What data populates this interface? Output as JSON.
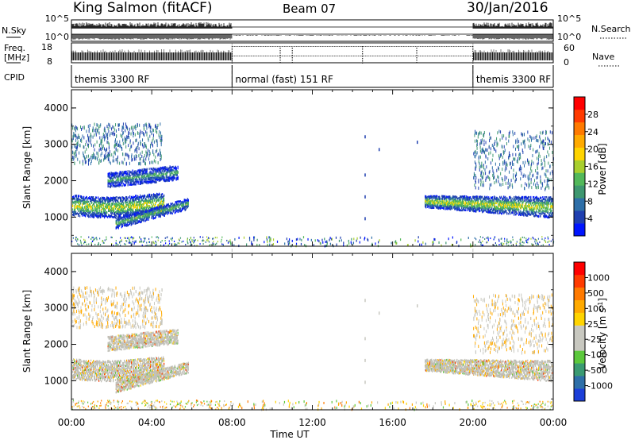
{
  "header": {
    "station": "King Salmon (fitACF)",
    "beam": "Beam 07",
    "date": "30/Jan/2016"
  },
  "panels": {
    "nsky_label": "N.Sky",
    "nsearch_label": "N.Search",
    "nsky_ticks": [
      "10^5",
      "10^0"
    ],
    "nsearch_ticks": [
      "10^5",
      "10^0"
    ],
    "freq_label_1": "Freq.",
    "freq_label_2": "[MHz]",
    "freq_ticks": [
      "18",
      "8"
    ],
    "nave_label": "Nave",
    "nave_ticks": [
      "60",
      "0"
    ],
    "cpid_label": "CPID",
    "cpid_segments": [
      {
        "label": "themis 3300 RF",
        "start_h": 0,
        "end_h": 8
      },
      {
        "label": "normal (fast) 151 RF",
        "start_h": 8,
        "end_h": 20
      },
      {
        "label": "themis 3300 RF",
        "start_h": 20,
        "end_h": 24
      }
    ]
  },
  "chart_data": [
    {
      "type": "heatmap",
      "title": "",
      "ylabel": "Slant Range [km]",
      "xlabel": "",
      "ylim": [
        200,
        4500
      ],
      "yticks": [
        1000,
        2000,
        3000,
        4000
      ],
      "colorbar": {
        "label": "Power [dB]",
        "ticks": [
          "28",
          "24",
          "20",
          "16",
          "12",
          "8",
          "4"
        ],
        "colors": [
          "#0015ff",
          "#1f3fb0",
          "#2e6fa8",
          "#3e9770",
          "#52b85a",
          "#a8cf2e",
          "#ffd400",
          "#ffaa00",
          "#ff7a00",
          "#ff3b00",
          "#ff0000"
        ]
      }
    },
    {
      "type": "heatmap",
      "title": "",
      "ylabel": "Slant Range [km]",
      "xlabel": "Time UT",
      "ylim": [
        200,
        4500
      ],
      "yticks": [
        1000,
        2000,
        3000,
        4000
      ],
      "xticks": [
        "00:00",
        "04:00",
        "08:00",
        "12:00",
        "16:00",
        "20:00",
        "00:00"
      ],
      "colorbar": {
        "label": "Velocity [m s^-1]",
        "ticks": [
          "1000",
          "500",
          "100",
          "25",
          "-25",
          "-100",
          "-500",
          "-1000"
        ],
        "colors": [
          "#1c3fd8",
          "#2e6fa8",
          "#3a9a72",
          "#5cc83c",
          "#c8c8c0",
          "#c8c8c0",
          "#ffd400",
          "#ffaa00",
          "#ff7a00",
          "#ff3b00",
          "#ff0000"
        ]
      }
    }
  ]
}
